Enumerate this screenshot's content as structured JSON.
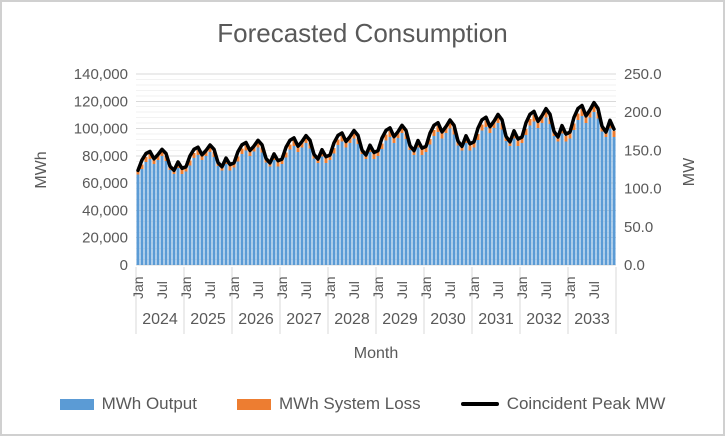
{
  "window": {
    "background": "#ffffff",
    "border_color": "#d0d0d0"
  },
  "chart_data": {
    "type": "combo",
    "title": "Forecasted Consumption",
    "text_color": "#595959",
    "grid": {
      "major_color": "#d9d9d9",
      "minor_color": "#f2f2f2",
      "separator_color": "#d9d9d9",
      "grid_on": true
    },
    "x_axis": {
      "title": "Month",
      "years": [
        2024,
        2025,
        2026,
        2027,
        2028,
        2029,
        2030,
        2031,
        2032,
        2033
      ],
      "month_tick_labels": [
        "Jan",
        "Jul"
      ],
      "months_per_year": 12,
      "total_months": 120
    },
    "y_axis_left": {
      "title": "MWh",
      "min": 0,
      "max": 140000,
      "major_unit": 20000,
      "minor_unit": 4000,
      "tick_labels_top_down": [
        "140,000",
        "120,000",
        "100,000",
        "80,000",
        "60,000",
        "40,000",
        "20,000",
        "0"
      ]
    },
    "y_axis_right": {
      "title": "MW",
      "min": 0,
      "max": 250,
      "major_unit": 50,
      "tick_labels_top_down": [
        "250.0",
        "200.0",
        "150.0",
        "100.0",
        "50.0",
        "0.0"
      ]
    },
    "legend": {
      "position": "bottom"
    },
    "series": [
      {
        "name": "MWh Output",
        "type": "bar",
        "stack": "mwh",
        "axis": "left",
        "color": "#5B9BD5",
        "values": [
          66200,
          70500,
          75500,
          77700,
          74100,
          77100,
          79900,
          76300,
          69800,
          66800,
          71200,
          66800,
          68600,
          73100,
          78500,
          80700,
          77000,
          79900,
          83000,
          79200,
          72400,
          69400,
          73900,
          69400,
          71300,
          76000,
          81500,
          83800,
          79900,
          83100,
          86200,
          82300,
          75200,
          72100,
          76900,
          72100,
          74000,
          78900,
          84600,
          87100,
          83000,
          86200,
          89500,
          85500,
          78100,
          74900,
          79700,
          74900,
          76900,
          81900,
          87900,
          90400,
          86200,
          89600,
          92900,
          88700,
          81200,
          77700,
          82800,
          77700,
          79800,
          85100,
          91300,
          93900,
          89500,
          93000,
          96600,
          92200,
          84200,
          80800,
          86000,
          80800,
          82900,
          88300,
          94700,
          97500,
          92900,
          96600,
          100200,
          95700,
          87500,
          83800,
          89300,
          83800,
          86100,
          91800,
          98500,
          101200,
          96600,
          100300,
          104100,
          99400,
          90800,
          87100,
          92700,
          87100,
          89400,
          95300,
          102200,
          105200,
          100300,
          104200,
          108100,
          103200,
          94400,
          90400,
          96300,
          90400,
          92900,
          99000,
          106200,
          109300,
          104100,
          108200,
          112300,
          107200,
          98000,
          94000,
          100100,
          94000
        ]
      },
      {
        "name": "MWh System Loss",
        "type": "bar",
        "stack": "mwh",
        "axis": "left",
        "color": "#ED7D31",
        "values": [
          3000,
          3200,
          3500,
          3600,
          3400,
          3500,
          3700,
          3500,
          3200,
          3100,
          3300,
          3100,
          3200,
          3400,
          3600,
          3700,
          3500,
          3700,
          3800,
          3600,
          3300,
          3200,
          3400,
          3200,
          3300,
          3500,
          3800,
          3900,
          3700,
          3800,
          4000,
          3800,
          3500,
          3300,
          3500,
          3300,
          3400,
          3600,
          3900,
          4000,
          3800,
          4000,
          4100,
          3900,
          3600,
          3400,
          3700,
          3400,
          3500,
          3800,
          4000,
          4200,
          4000,
          4100,
          4300,
          4100,
          3700,
          3600,
          3800,
          3600,
          3700,
          3900,
          4200,
          4300,
          4100,
          4300,
          4400,
          4200,
          3900,
          3700,
          4000,
          3700,
          3800,
          4100,
          4400,
          4500,
          4300,
          4400,
          4600,
          4400,
          4000,
          3900,
          4100,
          3900,
          4000,
          4200,
          4500,
          4700,
          4400,
          4600,
          4800,
          4600,
          4200,
          4000,
          4300,
          4000,
          4100,
          4400,
          4700,
          4800,
          4600,
          4800,
          5000,
          4700,
          4300,
          4200,
          4400,
          4200,
          4300,
          4600,
          4900,
          5000,
          4800,
          5000,
          5200,
          4900,
          4500,
          4300,
          4600,
          4300
        ]
      },
      {
        "name": "Coincident Peak MW",
        "type": "line",
        "axis": "right",
        "color": "#000000",
        "line_width": 3.5,
        "values": [
          123.8,
          137.6,
          145.9,
          148.6,
          139.0,
          144.5,
          151.4,
          145.9,
          129.3,
          123.8,
          134.8,
          126.6,
          128.5,
          142.8,
          151.4,
          154.2,
          144.2,
          149.9,
          157.1,
          151.4,
          134.2,
          128.5,
          139.9,
          131.4,
          133.6,
          148.4,
          157.3,
          160.3,
          149.9,
          155.8,
          163.2,
          157.3,
          139.5,
          133.6,
          145.4,
          136.5,
          138.6,
          154.0,
          163.2,
          166.3,
          155.5,
          161.7,
          169.4,
          163.2,
          144.8,
          138.6,
          150.9,
          141.7,
          144.0,
          160.0,
          169.6,
          172.8,
          161.6,
          168.0,
          176.0,
          169.6,
          150.4,
          144.0,
          156.8,
          147.2,
          149.6,
          166.2,
          176.2,
          179.5,
          167.9,
          174.5,
          182.8,
          176.2,
          156.2,
          149.6,
          162.9,
          152.9,
          155.3,
          172.5,
          182.9,
          186.3,
          174.2,
          181.1,
          189.8,
          182.9,
          162.2,
          155.3,
          169.1,
          158.7,
          161.3,
          179.2,
          190.0,
          193.5,
          181.0,
          188.2,
          197.1,
          190.0,
          168.4,
          161.3,
          175.6,
          164.9,
          167.5,
          186.1,
          197.3,
          201.0,
          188.0,
          195.4,
          204.7,
          197.3,
          174.9,
          167.5,
          182.4,
          171.2,
          174.0,
          193.3,
          204.9,
          208.8,
          195.2,
          203.0,
          212.6,
          204.9,
          181.7,
          174.0,
          189.4,
          177.8
        ]
      }
    ]
  }
}
